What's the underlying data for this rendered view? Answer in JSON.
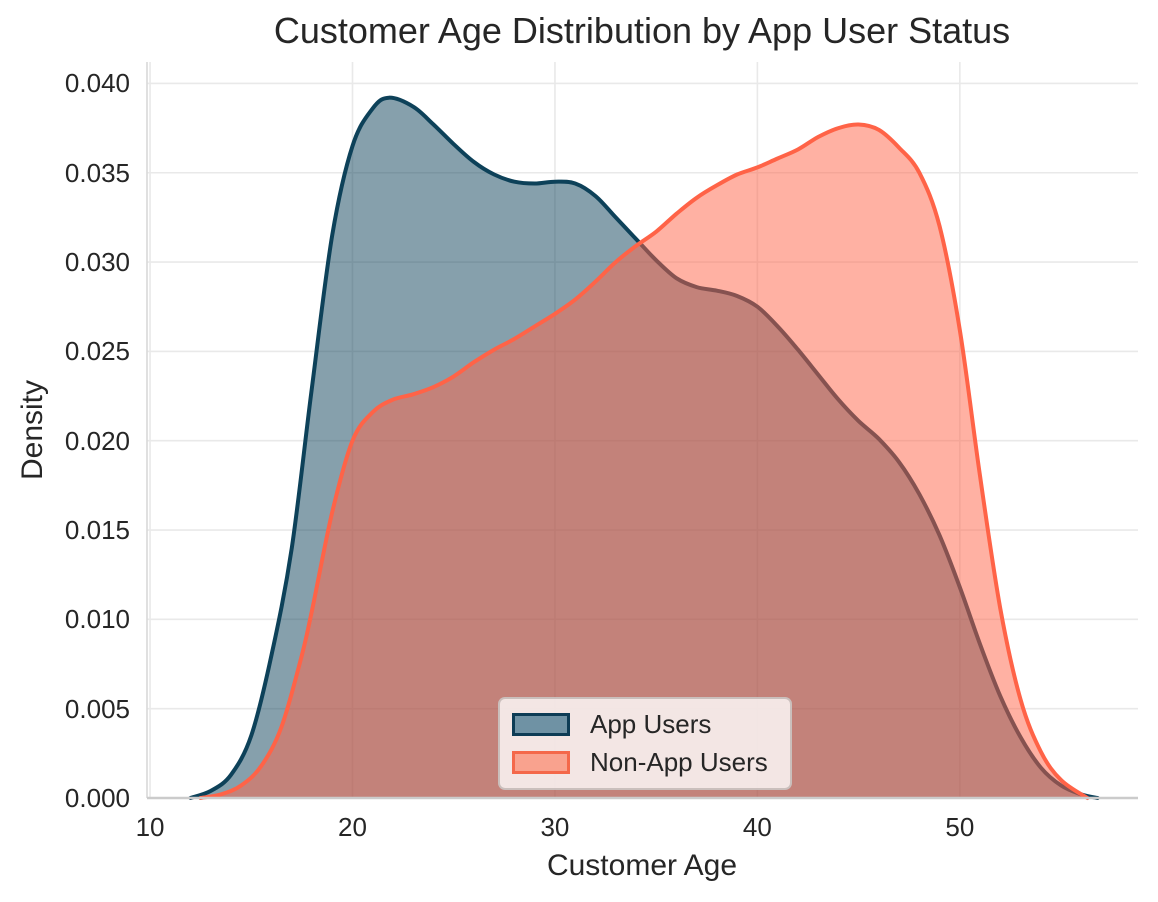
{
  "chart_data": {
    "type": "area",
    "subtype": "kde-density",
    "title": "Customer Age Distribution by App User Status",
    "xlabel": "Customer Age",
    "ylabel": "Density",
    "xlim": [
      9.85,
      58.8
    ],
    "ylim": [
      0,
      0.0412
    ],
    "grid": true,
    "x_ticks": [
      "10",
      "20",
      "30",
      "40",
      "50"
    ],
    "y_ticks": [
      "0.000",
      "0.005",
      "0.010",
      "0.015",
      "0.020",
      "0.025",
      "0.030",
      "0.035",
      "0.040"
    ],
    "legend": {
      "position": "lower center",
      "items": [
        {
          "label": "App Users",
          "swatch_fill": "#6f92a4",
          "swatch_border": "#0d3c55"
        },
        {
          "label": "Non-App Users",
          "swatch_fill": "#f9a28e",
          "swatch_border": "#f4684a"
        }
      ]
    },
    "series": [
      {
        "name": "App Users",
        "color": "#0d4159",
        "fill_opacity": 0.5,
        "points": [
          [
            12,
            0
          ],
          [
            13,
            0.0004
          ],
          [
            14,
            0.0013
          ],
          [
            15,
            0.0035
          ],
          [
            16,
            0.008
          ],
          [
            17,
            0.014
          ],
          [
            18,
            0.023
          ],
          [
            19,
            0.0315
          ],
          [
            20,
            0.0365
          ],
          [
            21,
            0.0386
          ],
          [
            21.8,
            0.0392
          ],
          [
            23,
            0.0387
          ],
          [
            24,
            0.0377
          ],
          [
            25,
            0.0366
          ],
          [
            26,
            0.0356
          ],
          [
            27,
            0.0349
          ],
          [
            28,
            0.0345
          ],
          [
            29,
            0.0344
          ],
          [
            30,
            0.0345
          ],
          [
            31,
            0.0344
          ],
          [
            32,
            0.0337
          ],
          [
            33,
            0.0325
          ],
          [
            34,
            0.0313
          ],
          [
            35,
            0.0301
          ],
          [
            36,
            0.0291
          ],
          [
            37,
            0.0286
          ],
          [
            38,
            0.0284
          ],
          [
            39,
            0.0281
          ],
          [
            40,
            0.0275
          ],
          [
            41,
            0.0264
          ],
          [
            42,
            0.0251
          ],
          [
            43,
            0.0237
          ],
          [
            44,
            0.0223
          ],
          [
            45,
            0.0211
          ],
          [
            46,
            0.0201
          ],
          [
            47,
            0.0188
          ],
          [
            48,
            0.017
          ],
          [
            49,
            0.0147
          ],
          [
            50,
            0.0118
          ],
          [
            51,
            0.0086
          ],
          [
            52,
            0.0057
          ],
          [
            53,
            0.0034
          ],
          [
            54,
            0.0017
          ],
          [
            55,
            0.0007
          ],
          [
            56,
            0.0002
          ],
          [
            56.8,
            0
          ]
        ]
      },
      {
        "name": "Non-App Users",
        "color": "#ff6347",
        "fill_opacity": 0.5,
        "points": [
          [
            12.5,
            0
          ],
          [
            13.5,
            0.0002
          ],
          [
            14.5,
            0.0007
          ],
          [
            15.5,
            0.0018
          ],
          [
            16.5,
            0.004
          ],
          [
            17.5,
            0.008
          ],
          [
            18,
            0.0105
          ],
          [
            19,
            0.016
          ],
          [
            20,
            0.02
          ],
          [
            21,
            0.0216
          ],
          [
            22,
            0.0223
          ],
          [
            23,
            0.0226
          ],
          [
            24,
            0.023
          ],
          [
            25,
            0.0236
          ],
          [
            26,
            0.0244
          ],
          [
            27,
            0.0251
          ],
          [
            28,
            0.0257
          ],
          [
            29,
            0.0264
          ],
          [
            30,
            0.0271
          ],
          [
            31,
            0.0279
          ],
          [
            32,
            0.0289
          ],
          [
            33,
            0.03
          ],
          [
            34,
            0.0309
          ],
          [
            35,
            0.0317
          ],
          [
            36,
            0.0327
          ],
          [
            37,
            0.0336
          ],
          [
            38,
            0.0343
          ],
          [
            39,
            0.0349
          ],
          [
            40,
            0.0353
          ],
          [
            41,
            0.0358
          ],
          [
            42,
            0.0363
          ],
          [
            43,
            0.037
          ],
          [
            44,
            0.0375
          ],
          [
            45,
            0.0377
          ],
          [
            46,
            0.0374
          ],
          [
            47,
            0.0364
          ],
          [
            48,
            0.035
          ],
          [
            49,
            0.032
          ],
          [
            50,
            0.0262
          ],
          [
            51,
            0.018
          ],
          [
            52,
            0.0106
          ],
          [
            53,
            0.0055
          ],
          [
            54,
            0.0026
          ],
          [
            55,
            0.001
          ],
          [
            56.3,
            0
          ]
        ]
      }
    ],
    "colors": {
      "grid": "#e9e9e9",
      "spine_left": "#d8d8d8",
      "spine_bottom": "#cbcbcb",
      "text": "#262626",
      "background": "#ffffff"
    }
  }
}
